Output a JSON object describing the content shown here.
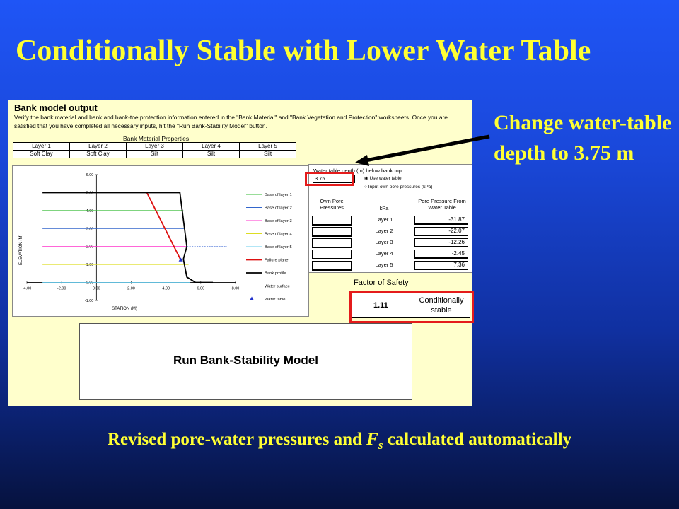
{
  "slide": {
    "title": "Conditionally Stable with Lower Water Table",
    "callout": "Change water-table depth to 3.75 m",
    "caption_before": "Revised pore-water pressures and ",
    "caption_var": "F",
    "caption_sub": "s",
    "caption_after": " calculated automatically"
  },
  "sheet": {
    "heading": "Bank model output",
    "description": "Verify the bank material and bank and bank-toe protection information entered in the \"Bank Material\" and \"Bank Vegetation and Protection\" worksheets. Once you are satisfied that you have completed all necessary inputs, hit the \"Run Bank-Stability Model\" button.",
    "material_heading": "Bank Material Properties",
    "layers": [
      "Layer 1",
      "Layer 2",
      "Layer 3",
      "Layer 4",
      "Layer 5"
    ],
    "materials": [
      "Soft Clay",
      "Soft Clay",
      "Silt",
      "Silt",
      "Silt"
    ],
    "water_table_label": "Water table depth (m) below bank top",
    "water_table_value": "3.75",
    "radio_use": "Use water table",
    "radio_input": "Input own pore pressures (kPa)",
    "own_pore_header": "Own Pore Pressures",
    "kpa_header": "kPa",
    "pp_header": "Pore Pressure From Water Table",
    "pore_rows": [
      {
        "layer": "Layer 1",
        "value": "-31.87"
      },
      {
        "layer": "Layer 2",
        "value": "-22.07"
      },
      {
        "layer": "Layer 3",
        "value": "-12.26"
      },
      {
        "layer": "Layer 4",
        "value": "-2.45"
      },
      {
        "layer": "Layer 5",
        "value": "7.36"
      }
    ],
    "fos_label": "Factor of Safety",
    "fos_value": "1.11",
    "fos_status": "Conditionally stable",
    "run_button": "Run Bank-Stability Model"
  },
  "colors": {
    "title_text": "#ffff33",
    "highlight": "#e41b1b",
    "sheet_bg": "#ffffcc"
  },
  "chart_data": {
    "type": "line",
    "xlabel": "STATION (M)",
    "ylabel": "ELEVATION (M)",
    "xlim": [
      -4,
      8
    ],
    "ylim": [
      -1,
      6
    ],
    "xticks": [
      "-4.00",
      "-2.00",
      "0.00",
      "2.00",
      "4.00",
      "6.00",
      "8.00"
    ],
    "yticks": [
      "-1.00",
      "0.00",
      "1.00",
      "2.00",
      "3.00",
      "4.00",
      "5.00",
      "6.00"
    ],
    "series": [
      {
        "name": "Base of layer 1",
        "color": "#33bb33",
        "points": [
          [
            -3.1,
            4.0
          ],
          [
            5.0,
            4.0
          ]
        ]
      },
      {
        "name": "Base of layer 2",
        "color": "#3366cc",
        "points": [
          [
            -3.1,
            3.0
          ],
          [
            5.1,
            3.0
          ]
        ]
      },
      {
        "name": "Base of layer 3",
        "color": "#ff33cc",
        "points": [
          [
            -3.1,
            2.0
          ],
          [
            5.2,
            2.0
          ]
        ]
      },
      {
        "name": "Base of layer 4",
        "color": "#dddd22",
        "points": [
          [
            -3.1,
            1.0
          ],
          [
            5.3,
            1.0
          ]
        ]
      },
      {
        "name": "Base of layer 5",
        "color": "#66ccee",
        "points": [
          [
            -3.1,
            0.0
          ],
          [
            5.4,
            0.0
          ]
        ]
      },
      {
        "name": "Failure plane",
        "color": "#dd1111",
        "points": [
          [
            2.9,
            5.0
          ],
          [
            4.85,
            1.25
          ]
        ]
      },
      {
        "name": "Bank profile",
        "color": "#000000",
        "points": [
          [
            -3.1,
            5.0
          ],
          [
            4.8,
            5.0
          ],
          [
            5.0,
            3.5
          ],
          [
            5.2,
            2.0
          ],
          [
            5.0,
            1.3
          ],
          [
            5.2,
            0.3
          ],
          [
            5.7,
            0.0
          ],
          [
            6.7,
            0.0
          ]
        ]
      },
      {
        "name": "Water surface",
        "color": "#6688dd",
        "points": [
          [
            5.2,
            2.0
          ],
          [
            7.5,
            2.0
          ]
        ]
      },
      {
        "name": "Water table",
        "color": "#2233cc",
        "points": [
          [
            4.85,
            1.25
          ]
        ]
      }
    ]
  }
}
